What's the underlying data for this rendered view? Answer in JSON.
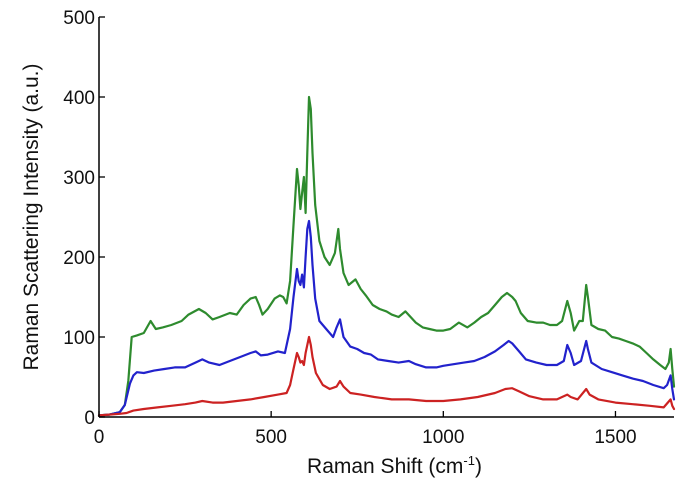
{
  "chart_data": {
    "type": "line",
    "title": "",
    "xlabel": "Raman Shift (cm",
    "xlabel_sup": "-1",
    "xlabel_end": ")",
    "ylabel": "Raman Scattering Intensity (a.u.)",
    "xlim": [
      0,
      1670
    ],
    "ylim": [
      0,
      500
    ],
    "xticks": [
      0,
      500,
      1000,
      1500
    ],
    "yticks": [
      0,
      100,
      200,
      300,
      400,
      500
    ],
    "xtick_labels": [
      "0",
      "500",
      "1000",
      "1500"
    ],
    "ytick_labels": [
      "0",
      "100",
      "200",
      "300",
      "400",
      "500"
    ],
    "grid": false,
    "legend": "none",
    "series": [
      {
        "color": "#2e8b2e",
        "points": [
          [
            0,
            2
          ],
          [
            30,
            3
          ],
          [
            60,
            6
          ],
          [
            75,
            15
          ],
          [
            85,
            45
          ],
          [
            95,
            100
          ],
          [
            110,
            102
          ],
          [
            130,
            105
          ],
          [
            150,
            120
          ],
          [
            165,
            110
          ],
          [
            185,
            112
          ],
          [
            210,
            115
          ],
          [
            240,
            120
          ],
          [
            260,
            128
          ],
          [
            290,
            135
          ],
          [
            310,
            130
          ],
          [
            330,
            122
          ],
          [
            350,
            125
          ],
          [
            380,
            130
          ],
          [
            400,
            128
          ],
          [
            420,
            140
          ],
          [
            440,
            148
          ],
          [
            455,
            150
          ],
          [
            465,
            140
          ],
          [
            475,
            128
          ],
          [
            490,
            135
          ],
          [
            510,
            148
          ],
          [
            525,
            152
          ],
          [
            535,
            150
          ],
          [
            545,
            142
          ],
          [
            555,
            170
          ],
          [
            565,
            240
          ],
          [
            575,
            310
          ],
          [
            580,
            290
          ],
          [
            585,
            260
          ],
          [
            590,
            280
          ],
          [
            595,
            300
          ],
          [
            600,
            255
          ],
          [
            605,
            330
          ],
          [
            610,
            400
          ],
          [
            615,
            385
          ],
          [
            620,
            330
          ],
          [
            628,
            265
          ],
          [
            640,
            220
          ],
          [
            655,
            200
          ],
          [
            670,
            190
          ],
          [
            685,
            205
          ],
          [
            695,
            235
          ],
          [
            700,
            210
          ],
          [
            710,
            180
          ],
          [
            725,
            165
          ],
          [
            745,
            172
          ],
          [
            760,
            160
          ],
          [
            775,
            152
          ],
          [
            795,
            140
          ],
          [
            815,
            135
          ],
          [
            835,
            132
          ],
          [
            850,
            128
          ],
          [
            870,
            125
          ],
          [
            890,
            132
          ],
          [
            905,
            125
          ],
          [
            920,
            118
          ],
          [
            940,
            112
          ],
          [
            960,
            110
          ],
          [
            980,
            108
          ],
          [
            1000,
            108
          ],
          [
            1020,
            110
          ],
          [
            1045,
            118
          ],
          [
            1070,
            112
          ],
          [
            1090,
            118
          ],
          [
            1110,
            125
          ],
          [
            1130,
            130
          ],
          [
            1150,
            140
          ],
          [
            1170,
            150
          ],
          [
            1185,
            155
          ],
          [
            1200,
            150
          ],
          [
            1210,
            145
          ],
          [
            1225,
            130
          ],
          [
            1245,
            120
          ],
          [
            1270,
            118
          ],
          [
            1290,
            118
          ],
          [
            1310,
            115
          ],
          [
            1330,
            115
          ],
          [
            1345,
            120
          ],
          [
            1360,
            145
          ],
          [
            1370,
            130
          ],
          [
            1380,
            108
          ],
          [
            1395,
            120
          ],
          [
            1405,
            120
          ],
          [
            1415,
            165
          ],
          [
            1420,
            150
          ],
          [
            1430,
            115
          ],
          [
            1450,
            110
          ],
          [
            1470,
            108
          ],
          [
            1490,
            100
          ],
          [
            1510,
            98
          ],
          [
            1530,
            95
          ],
          [
            1550,
            92
          ],
          [
            1570,
            88
          ],
          [
            1590,
            80
          ],
          [
            1610,
            72
          ],
          [
            1630,
            65
          ],
          [
            1645,
            60
          ],
          [
            1655,
            68
          ],
          [
            1660,
            85
          ],
          [
            1665,
            60
          ],
          [
            1670,
            38
          ]
        ]
      },
      {
        "color": "#2222cc",
        "points": [
          [
            0,
            2
          ],
          [
            30,
            3
          ],
          [
            60,
            6
          ],
          [
            75,
            15
          ],
          [
            90,
            42
          ],
          [
            100,
            52
          ],
          [
            110,
            56
          ],
          [
            130,
            55
          ],
          [
            160,
            58
          ],
          [
            190,
            60
          ],
          [
            220,
            62
          ],
          [
            250,
            62
          ],
          [
            280,
            68
          ],
          [
            300,
            72
          ],
          [
            320,
            68
          ],
          [
            350,
            65
          ],
          [
            380,
            70
          ],
          [
            410,
            75
          ],
          [
            440,
            80
          ],
          [
            455,
            82
          ],
          [
            470,
            77
          ],
          [
            490,
            78
          ],
          [
            520,
            82
          ],
          [
            540,
            80
          ],
          [
            555,
            110
          ],
          [
            565,
            150
          ],
          [
            575,
            185
          ],
          [
            580,
            170
          ],
          [
            585,
            165
          ],
          [
            590,
            178
          ],
          [
            595,
            162
          ],
          [
            600,
            200
          ],
          [
            605,
            235
          ],
          [
            610,
            245
          ],
          [
            615,
            225
          ],
          [
            620,
            190
          ],
          [
            628,
            148
          ],
          [
            640,
            120
          ],
          [
            660,
            110
          ],
          [
            680,
            100
          ],
          [
            690,
            112
          ],
          [
            700,
            122
          ],
          [
            710,
            100
          ],
          [
            730,
            88
          ],
          [
            750,
            85
          ],
          [
            770,
            80
          ],
          [
            790,
            78
          ],
          [
            810,
            72
          ],
          [
            840,
            70
          ],
          [
            870,
            68
          ],
          [
            900,
            70
          ],
          [
            920,
            66
          ],
          [
            950,
            62
          ],
          [
            980,
            62
          ],
          [
            1000,
            64
          ],
          [
            1030,
            66
          ],
          [
            1060,
            68
          ],
          [
            1090,
            70
          ],
          [
            1120,
            75
          ],
          [
            1150,
            82
          ],
          [
            1175,
            90
          ],
          [
            1190,
            95
          ],
          [
            1200,
            92
          ],
          [
            1220,
            82
          ],
          [
            1240,
            72
          ],
          [
            1270,
            68
          ],
          [
            1300,
            65
          ],
          [
            1330,
            65
          ],
          [
            1350,
            70
          ],
          [
            1360,
            90
          ],
          [
            1370,
            80
          ],
          [
            1380,
            65
          ],
          [
            1400,
            70
          ],
          [
            1415,
            95
          ],
          [
            1420,
            85
          ],
          [
            1430,
            68
          ],
          [
            1460,
            60
          ],
          [
            1490,
            56
          ],
          [
            1520,
            52
          ],
          [
            1550,
            48
          ],
          [
            1580,
            45
          ],
          [
            1610,
            40
          ],
          [
            1640,
            36
          ],
          [
            1650,
            40
          ],
          [
            1660,
            52
          ],
          [
            1665,
            35
          ],
          [
            1670,
            22
          ]
        ]
      },
      {
        "color": "#cc2222",
        "points": [
          [
            0,
            2
          ],
          [
            30,
            3
          ],
          [
            60,
            4
          ],
          [
            80,
            5
          ],
          [
            100,
            8
          ],
          [
            130,
            10
          ],
          [
            170,
            12
          ],
          [
            210,
            14
          ],
          [
            250,
            16
          ],
          [
            280,
            18
          ],
          [
            300,
            20
          ],
          [
            330,
            18
          ],
          [
            360,
            18
          ],
          [
            400,
            20
          ],
          [
            440,
            22
          ],
          [
            480,
            25
          ],
          [
            520,
            28
          ],
          [
            545,
            30
          ],
          [
            555,
            40
          ],
          [
            565,
            60
          ],
          [
            575,
            80
          ],
          [
            580,
            75
          ],
          [
            585,
            68
          ],
          [
            590,
            70
          ],
          [
            595,
            65
          ],
          [
            600,
            80
          ],
          [
            605,
            90
          ],
          [
            610,
            100
          ],
          [
            615,
            90
          ],
          [
            620,
            75
          ],
          [
            630,
            55
          ],
          [
            650,
            40
          ],
          [
            670,
            35
          ],
          [
            690,
            38
          ],
          [
            700,
            45
          ],
          [
            710,
            38
          ],
          [
            730,
            30
          ],
          [
            760,
            28
          ],
          [
            800,
            25
          ],
          [
            850,
            22
          ],
          [
            900,
            22
          ],
          [
            950,
            20
          ],
          [
            1000,
            20
          ],
          [
            1050,
            22
          ],
          [
            1100,
            25
          ],
          [
            1150,
            30
          ],
          [
            1180,
            35
          ],
          [
            1200,
            36
          ],
          [
            1220,
            32
          ],
          [
            1250,
            26
          ],
          [
            1290,
            22
          ],
          [
            1330,
            22
          ],
          [
            1360,
            28
          ],
          [
            1370,
            25
          ],
          [
            1390,
            22
          ],
          [
            1415,
            35
          ],
          [
            1425,
            28
          ],
          [
            1450,
            22
          ],
          [
            1500,
            18
          ],
          [
            1550,
            16
          ],
          [
            1600,
            14
          ],
          [
            1640,
            12
          ],
          [
            1660,
            22
          ],
          [
            1665,
            14
          ],
          [
            1670,
            10
          ]
        ]
      }
    ]
  }
}
